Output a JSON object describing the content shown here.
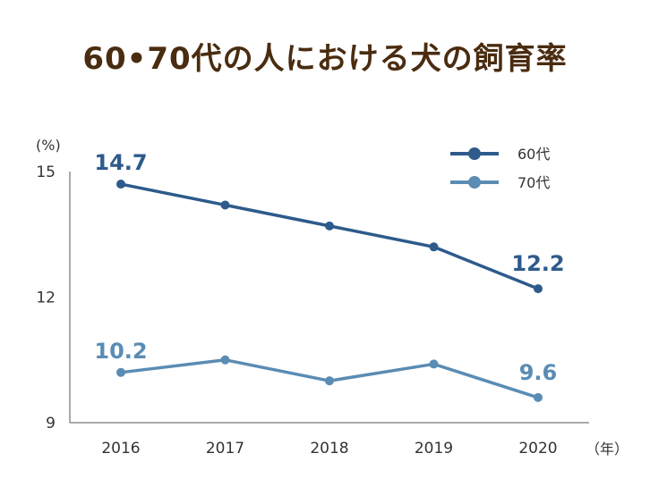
{
  "chart_data": {
    "type": "line",
    "title": "60•70代の人における犬の飼育率",
    "y_unit_label": "(%)",
    "x_unit_label": "（年）",
    "categories": [
      "2016",
      "2017",
      "2018",
      "2019",
      "2020"
    ],
    "ylim": [
      9,
      15
    ],
    "yticks": [
      9,
      12,
      15
    ],
    "grid": false,
    "legend_position": "top-right",
    "series": [
      {
        "name": "60代",
        "color": "#2e5a8c",
        "values": [
          14.7,
          14.2,
          13.7,
          13.2,
          12.2
        ],
        "start_label": "14.7",
        "end_label": "12.2"
      },
      {
        "name": "70代",
        "color": "#5a8cb4",
        "values": [
          10.2,
          10.5,
          10.0,
          10.4,
          9.6
        ],
        "start_label": "10.2",
        "end_label": "9.6"
      }
    ]
  }
}
